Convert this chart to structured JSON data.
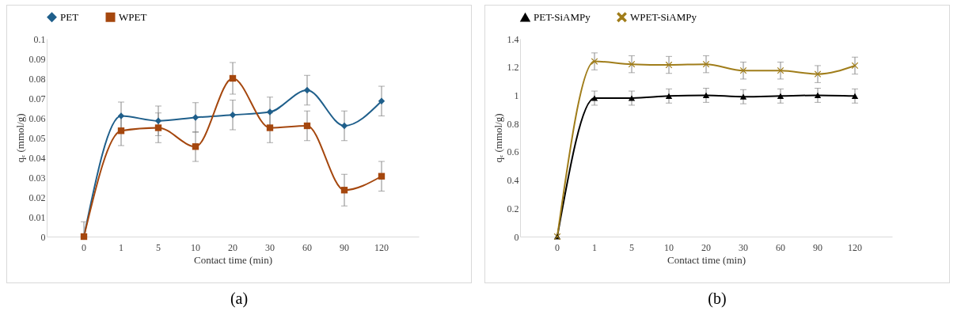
{
  "chart_data": [
    {
      "type": "line",
      "xlabel": "Contact time (min)",
      "ylabel": "qₑ (mmol/g)",
      "categories": [
        "0",
        "1",
        "5",
        "10",
        "20",
        "30",
        "60",
        "90",
        "120"
      ],
      "ylim": [
        0,
        0.1
      ],
      "yticks": [
        0,
        0.01,
        0.02,
        0.03,
        0.04,
        0.05,
        0.06,
        0.07,
        0.08,
        0.09,
        0.1
      ],
      "grid": false,
      "legend": "top",
      "annotations": [
        "(a)"
      ],
      "series": [
        {
          "name": "PET",
          "color": "#1f5f8b",
          "marker": "diamond",
          "values": [
            0,
            0.061,
            0.0585,
            0.0602,
            0.0615,
            0.063,
            0.074,
            0.056,
            0.0685
          ],
          "errors": [
            [
              0,
              0.0075
            ],
            0.007,
            0.0075,
            0.0075,
            0.0075,
            0.0075,
            0.0075,
            0.0075,
            0.0075
          ]
        },
        {
          "name": "WPET",
          "color": "#a5470e",
          "marker": "square",
          "values": [
            0,
            0.0535,
            0.055,
            0.0455,
            0.08,
            0.055,
            0.056,
            0.0235,
            0.0305
          ],
          "errors": [
            null,
            0.0075,
            0.0075,
            0.0075,
            0.008,
            0.0075,
            0.0075,
            0.008,
            0.0075
          ]
        }
      ]
    },
    {
      "type": "line",
      "xlabel": "Contact time (min)",
      "ylabel": "qₑ (mmol/g)",
      "categories": [
        "0",
        "1",
        "5",
        "10",
        "20",
        "30",
        "60",
        "90",
        "120"
      ],
      "ylim": [
        0,
        1.4
      ],
      "yticks": [
        0,
        0.2,
        0.4,
        0.6,
        0.8,
        1,
        1.2,
        1.4
      ],
      "grid": false,
      "legend": "top",
      "annotations": [
        "(b)"
      ],
      "series": [
        {
          "name": "PET-SiAMPy",
          "color": "#000000",
          "marker": "triangle",
          "values": [
            0,
            0.98,
            0.98,
            0.995,
            1.0,
            0.99,
            0.995,
            1.0,
            0.995
          ],
          "errors": [
            null,
            0.05,
            0.05,
            0.05,
            0.05,
            0.05,
            0.05,
            0.05,
            0.05
          ]
        },
        {
          "name": "WPET-SiAMPy",
          "color": "#a07d1a",
          "marker": "cross",
          "values": [
            0,
            1.24,
            1.22,
            1.215,
            1.22,
            1.175,
            1.175,
            1.15,
            1.21
          ],
          "errors": [
            null,
            0.06,
            0.06,
            0.06,
            0.06,
            0.06,
            0.06,
            0.06,
            0.06
          ]
        }
      ]
    }
  ]
}
